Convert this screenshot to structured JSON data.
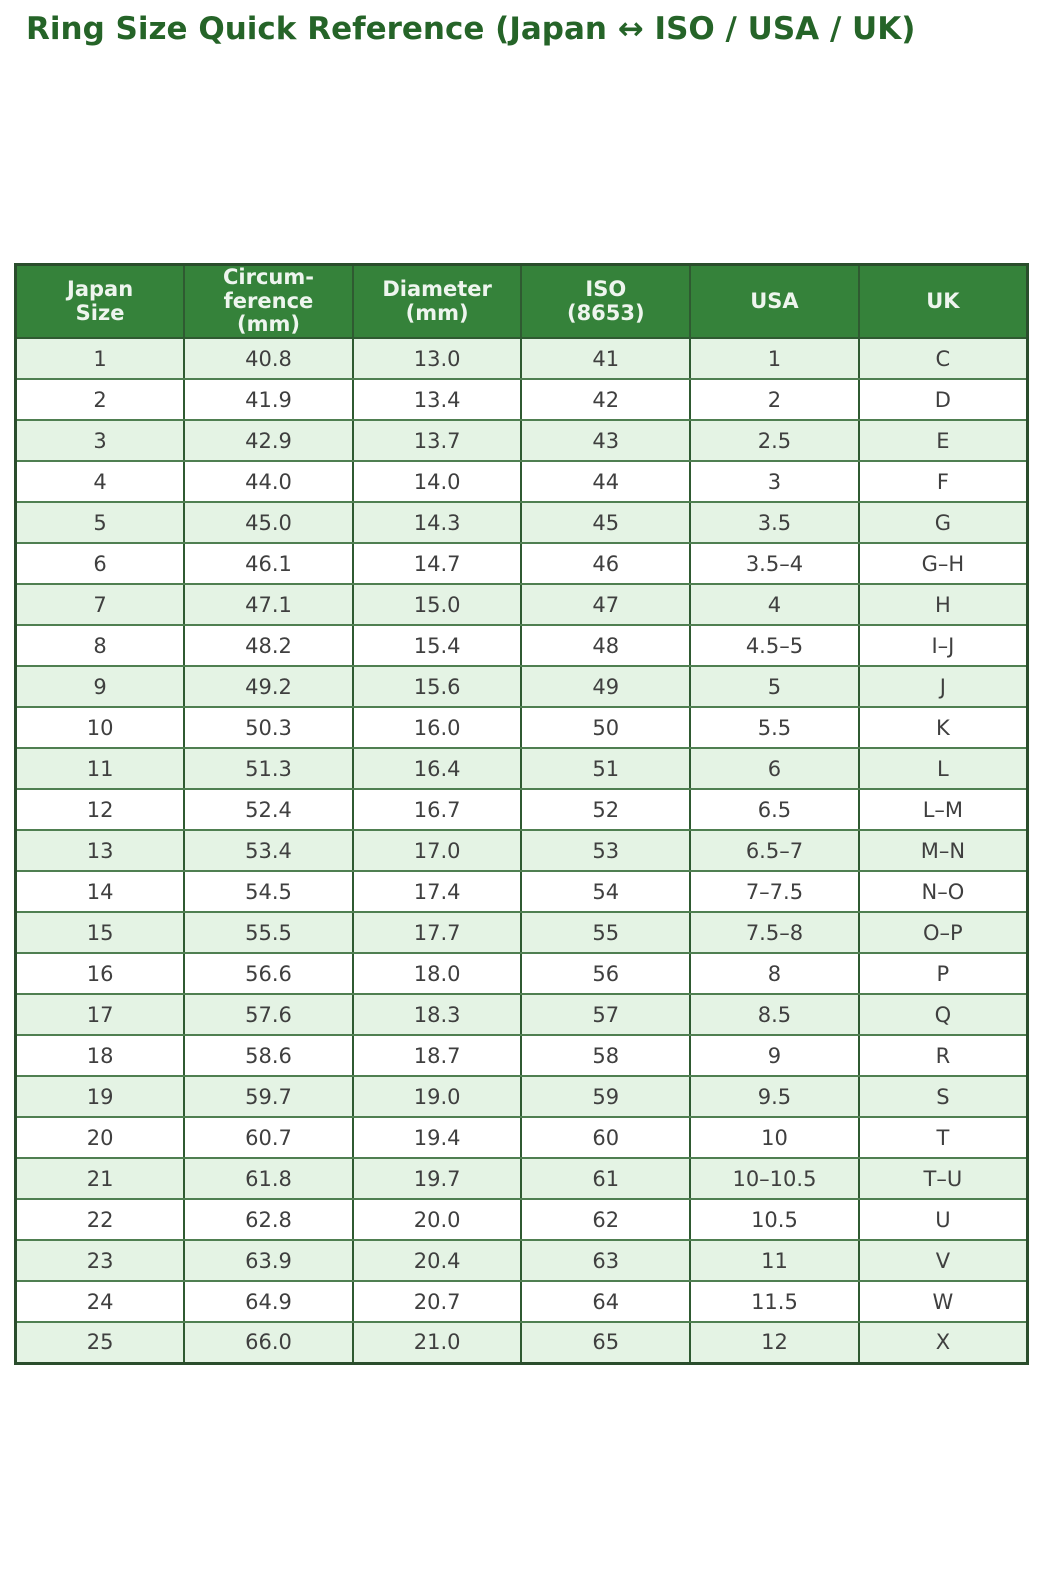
{
  "page": {
    "title": "Ring Size Quick Reference (Japan ↔ ISO / USA / UK)"
  },
  "colors": {
    "title_green": "#256428",
    "header_bg": "#35823a",
    "header_text": "#eef5ee",
    "row_alt_bg": "#e4f3e4",
    "row_bg": "#ffffff",
    "grid_border": "#2f5a31",
    "cell_text": "#3f3f3f"
  },
  "chart_data": {
    "type": "table",
    "title": "Ring Size Quick Reference (Japan ↔ ISO / USA / UK)",
    "columns": [
      "Japan\nSize",
      "Circum-\nference\n(mm)",
      "Diameter\n(mm)",
      "ISO\n(8653)",
      "USA",
      "UK"
    ],
    "rows": [
      [
        "1",
        "40.8",
        "13.0",
        "41",
        "1",
        "C"
      ],
      [
        "2",
        "41.9",
        "13.4",
        "42",
        "2",
        "D"
      ],
      [
        "3",
        "42.9",
        "13.7",
        "43",
        "2.5",
        "E"
      ],
      [
        "4",
        "44.0",
        "14.0",
        "44",
        "3",
        "F"
      ],
      [
        "5",
        "45.0",
        "14.3",
        "45",
        "3.5",
        "G"
      ],
      [
        "6",
        "46.1",
        "14.7",
        "46",
        "3.5–4",
        "G–H"
      ],
      [
        "7",
        "47.1",
        "15.0",
        "47",
        "4",
        "H"
      ],
      [
        "8",
        "48.2",
        "15.4",
        "48",
        "4.5–5",
        "I–J"
      ],
      [
        "9",
        "49.2",
        "15.6",
        "49",
        "5",
        "J"
      ],
      [
        "10",
        "50.3",
        "16.0",
        "50",
        "5.5",
        "K"
      ],
      [
        "11",
        "51.3",
        "16.4",
        "51",
        "6",
        "L"
      ],
      [
        "12",
        "52.4",
        "16.7",
        "52",
        "6.5",
        "L–M"
      ],
      [
        "13",
        "53.4",
        "17.0",
        "53",
        "6.5–7",
        "M–N"
      ],
      [
        "14",
        "54.5",
        "17.4",
        "54",
        "7–7.5",
        "N–O"
      ],
      [
        "15",
        "55.5",
        "17.7",
        "55",
        "7.5–8",
        "O–P"
      ],
      [
        "16",
        "56.6",
        "18.0",
        "56",
        "8",
        "P"
      ],
      [
        "17",
        "57.6",
        "18.3",
        "57",
        "8.5",
        "Q"
      ],
      [
        "18",
        "58.6",
        "18.7",
        "58",
        "9",
        "R"
      ],
      [
        "19",
        "59.7",
        "19.0",
        "59",
        "9.5",
        "S"
      ],
      [
        "20",
        "60.7",
        "19.4",
        "60",
        "10",
        "T"
      ],
      [
        "21",
        "61.8",
        "19.7",
        "61",
        "10–10.5",
        "T–U"
      ],
      [
        "22",
        "62.8",
        "20.0",
        "62",
        "10.5",
        "U"
      ],
      [
        "23",
        "63.9",
        "20.4",
        "63",
        "11",
        "V"
      ],
      [
        "24",
        "64.9",
        "20.7",
        "64",
        "11.5",
        "W"
      ],
      [
        "25",
        "66.0",
        "21.0",
        "65",
        "12",
        "X"
      ]
    ]
  }
}
